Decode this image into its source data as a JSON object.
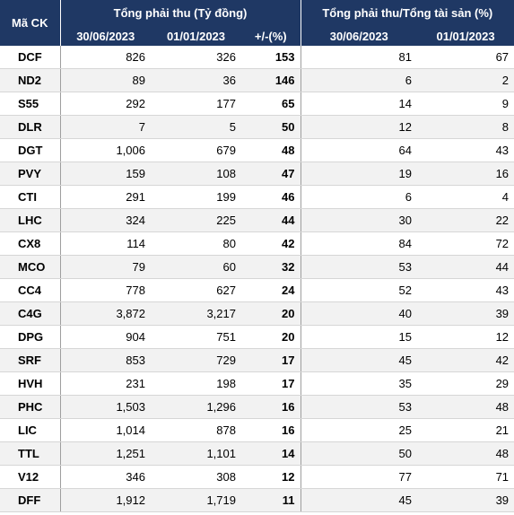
{
  "header": {
    "code_label": "Mã CK",
    "group1_label": "Tổng phải thu (Tỷ đồng)",
    "group2_label": "Tổng phải thu/Tổng tài sản (%)",
    "col_date1": "30/06/2023",
    "col_date2": "01/01/2023",
    "col_change": "+/-(%)",
    "col_ratio_date1": "30/06/2023",
    "col_ratio_date2": "01/01/2023"
  },
  "rows": [
    {
      "code": "DCF",
      "v1": "826",
      "v2": "326",
      "chg": "153",
      "r1": "81",
      "r2": "67"
    },
    {
      "code": "ND2",
      "v1": "89",
      "v2": "36",
      "chg": "146",
      "r1": "6",
      "r2": "2"
    },
    {
      "code": "S55",
      "v1": "292",
      "v2": "177",
      "chg": "65",
      "r1": "14",
      "r2": "9"
    },
    {
      "code": "DLR",
      "v1": "7",
      "v2": "5",
      "chg": "50",
      "r1": "12",
      "r2": "8"
    },
    {
      "code": "DGT",
      "v1": "1,006",
      "v2": "679",
      "chg": "48",
      "r1": "64",
      "r2": "43"
    },
    {
      "code": "PVY",
      "v1": "159",
      "v2": "108",
      "chg": "47",
      "r1": "19",
      "r2": "16"
    },
    {
      "code": "CTI",
      "v1": "291",
      "v2": "199",
      "chg": "46",
      "r1": "6",
      "r2": "4"
    },
    {
      "code": "LHC",
      "v1": "324",
      "v2": "225",
      "chg": "44",
      "r1": "30",
      "r2": "22"
    },
    {
      "code": "CX8",
      "v1": "114",
      "v2": "80",
      "chg": "42",
      "r1": "84",
      "r2": "72"
    },
    {
      "code": "MCO",
      "v1": "79",
      "v2": "60",
      "chg": "32",
      "r1": "53",
      "r2": "44"
    },
    {
      "code": "CC4",
      "v1": "778",
      "v2": "627",
      "chg": "24",
      "r1": "52",
      "r2": "43"
    },
    {
      "code": "C4G",
      "v1": "3,872",
      "v2": "3,217",
      "chg": "20",
      "r1": "40",
      "r2": "39"
    },
    {
      "code": "DPG",
      "v1": "904",
      "v2": "751",
      "chg": "20",
      "r1": "15",
      "r2": "12"
    },
    {
      "code": "SRF",
      "v1": "853",
      "v2": "729",
      "chg": "17",
      "r1": "45",
      "r2": "42"
    },
    {
      "code": "HVH",
      "v1": "231",
      "v2": "198",
      "chg": "17",
      "r1": "35",
      "r2": "29"
    },
    {
      "code": "PHC",
      "v1": "1,503",
      "v2": "1,296",
      "chg": "16",
      "r1": "53",
      "r2": "48"
    },
    {
      "code": "LIC",
      "v1": "1,014",
      "v2": "878",
      "chg": "16",
      "r1": "25",
      "r2": "21"
    },
    {
      "code": "TTL",
      "v1": "1,251",
      "v2": "1,101",
      "chg": "14",
      "r1": "50",
      "r2": "48"
    },
    {
      "code": "V12",
      "v1": "346",
      "v2": "308",
      "chg": "12",
      "r1": "77",
      "r2": "71"
    },
    {
      "code": "DFF",
      "v1": "1,912",
      "v2": "1,719",
      "chg": "11",
      "r1": "45",
      "r2": "39"
    }
  ]
}
